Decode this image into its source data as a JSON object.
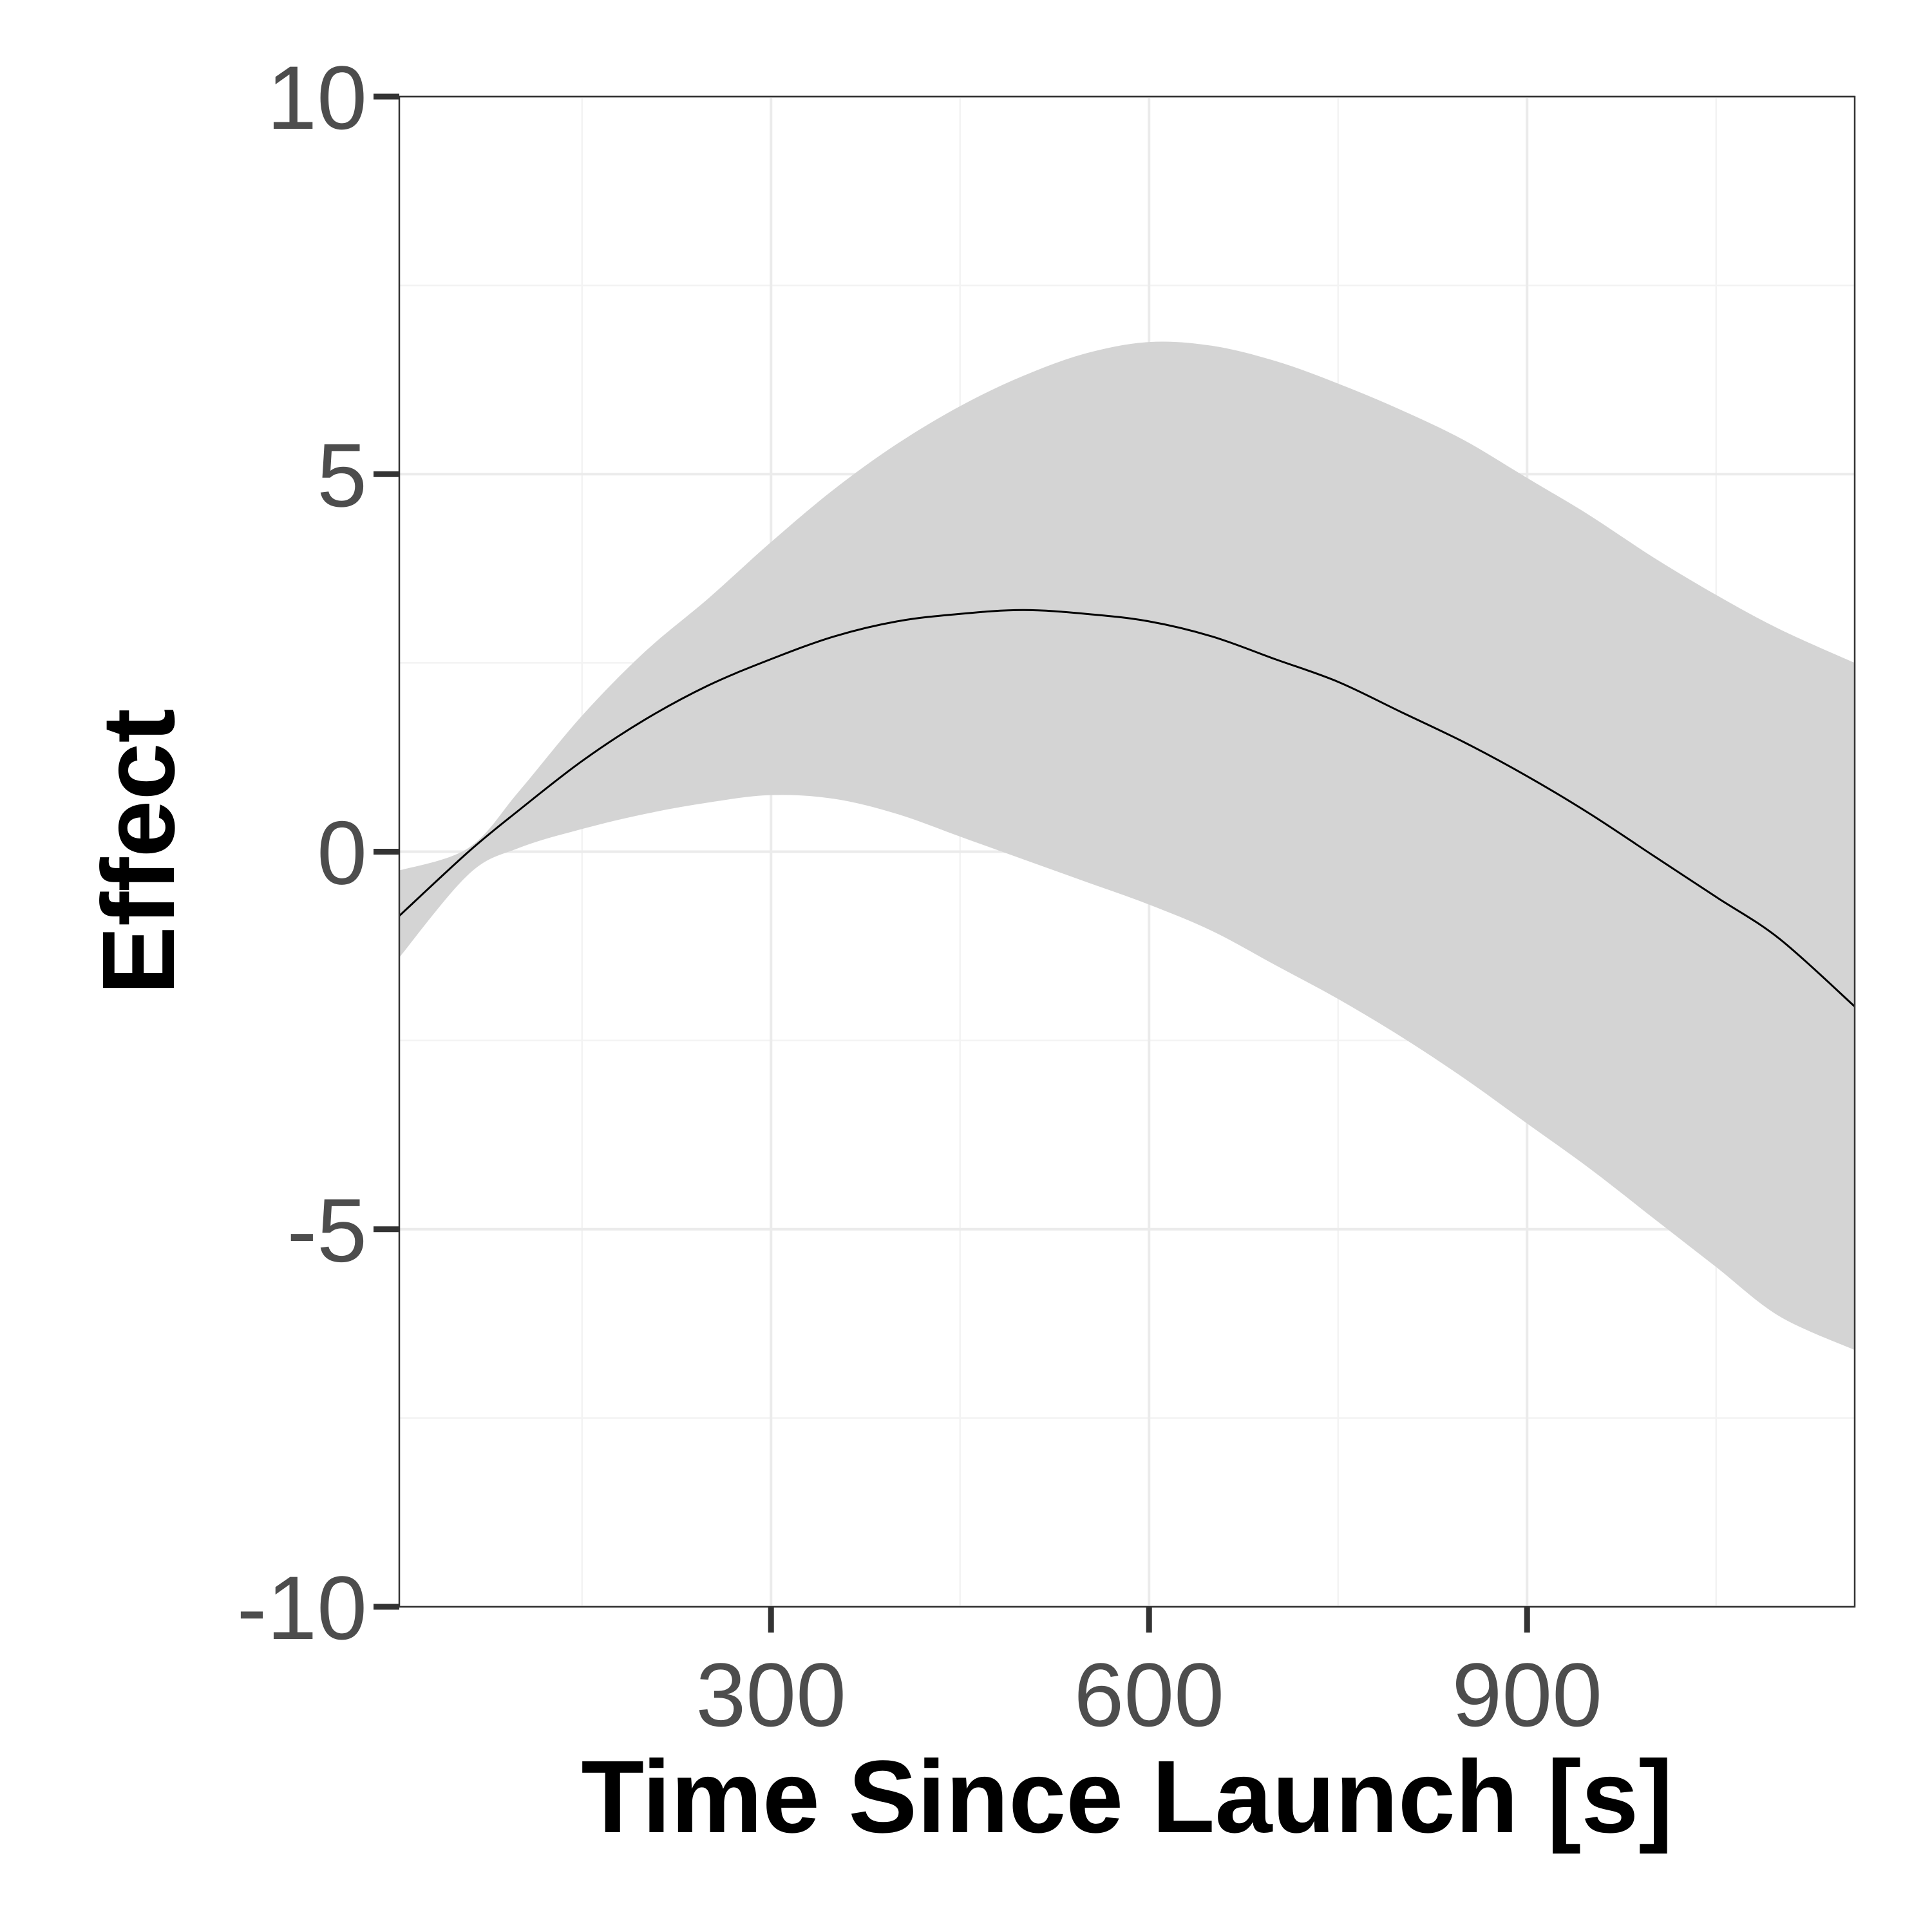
{
  "chart_data": {
    "type": "line",
    "title": "",
    "xlabel": "Time Since Launch [s]",
    "ylabel": "Effect",
    "xlim": [
      5,
      1160
    ],
    "ylim": [
      -10,
      10
    ],
    "x_ticks": [
      300,
      600,
      900
    ],
    "x_tick_labels": [
      "300",
      "600",
      "900"
    ],
    "y_ticks": [
      -10,
      -5,
      0,
      5,
      10
    ],
    "y_tick_labels": [
      "-10",
      "-5",
      "0",
      "5",
      "10"
    ],
    "grid": true,
    "legend": "none",
    "series": [
      {
        "x": [
          5,
          60,
          100,
          150,
          200,
          250,
          300,
          350,
          400,
          450,
          500,
          550,
          600,
          650,
          700,
          750,
          800,
          850,
          900,
          950,
          1000,
          1050,
          1100,
          1160
        ],
        "y": [
          -0.85,
          0.0,
          0.55,
          1.2,
          1.75,
          2.2,
          2.55,
          2.85,
          3.05,
          3.15,
          3.2,
          3.15,
          3.05,
          2.85,
          2.55,
          2.25,
          1.85,
          1.45,
          1.0,
          0.5,
          -0.05,
          -0.6,
          -1.15,
          -2.05
        ],
        "lower": [
          -1.4,
          -0.3,
          0.05,
          0.3,
          0.5,
          0.65,
          0.75,
          0.7,
          0.5,
          0.2,
          -0.1,
          -0.4,
          -0.7,
          -1.05,
          -1.5,
          -1.95,
          -2.45,
          -3.0,
          -3.6,
          -4.2,
          -4.85,
          -5.5,
          -6.15,
          -6.6
        ],
        "upper": [
          -0.25,
          0.05,
          0.8,
          1.8,
          2.65,
          3.35,
          4.1,
          4.8,
          5.4,
          5.9,
          6.3,
          6.6,
          6.75,
          6.7,
          6.5,
          6.2,
          5.85,
          5.45,
          4.95,
          4.45,
          3.9,
          3.4,
          2.95,
          2.5
        ]
      }
    ],
    "colors": {
      "line": "#000000",
      "band": "#d4d4d4",
      "grid_major": "#ebebeb",
      "grid_minor": "#f3f3f3",
      "border": "#333333",
      "tick_label": "#4d4d4d"
    }
  }
}
